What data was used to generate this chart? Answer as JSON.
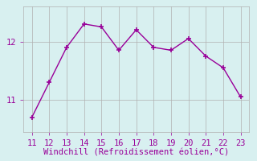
{
  "x": [
    11,
    12,
    13,
    14,
    15,
    16,
    17,
    18,
    19,
    20,
    21,
    22,
    23
  ],
  "y": [
    10.7,
    11.3,
    11.9,
    12.3,
    12.25,
    11.85,
    12.2,
    11.9,
    11.85,
    12.05,
    11.75,
    11.55,
    11.05
  ],
  "line_color": "#990099",
  "marker": "+",
  "xlabel": "Windchill (Refroidissement éolien,°C)",
  "xlabel_fontsize": 7.5,
  "xlabel_color": "#990099",
  "background_color": "#d8f0f0",
  "grid_color": "#b0b0b0",
  "tick_color": "#990099",
  "xlim": [
    10.5,
    23.5
  ],
  "ylim": [
    10.45,
    12.6
  ],
  "xticks": [
    11,
    12,
    13,
    14,
    15,
    16,
    17,
    18,
    19,
    20,
    21,
    22,
    23
  ],
  "yticks": [
    11,
    12
  ],
  "tick_fontsize": 7.5
}
